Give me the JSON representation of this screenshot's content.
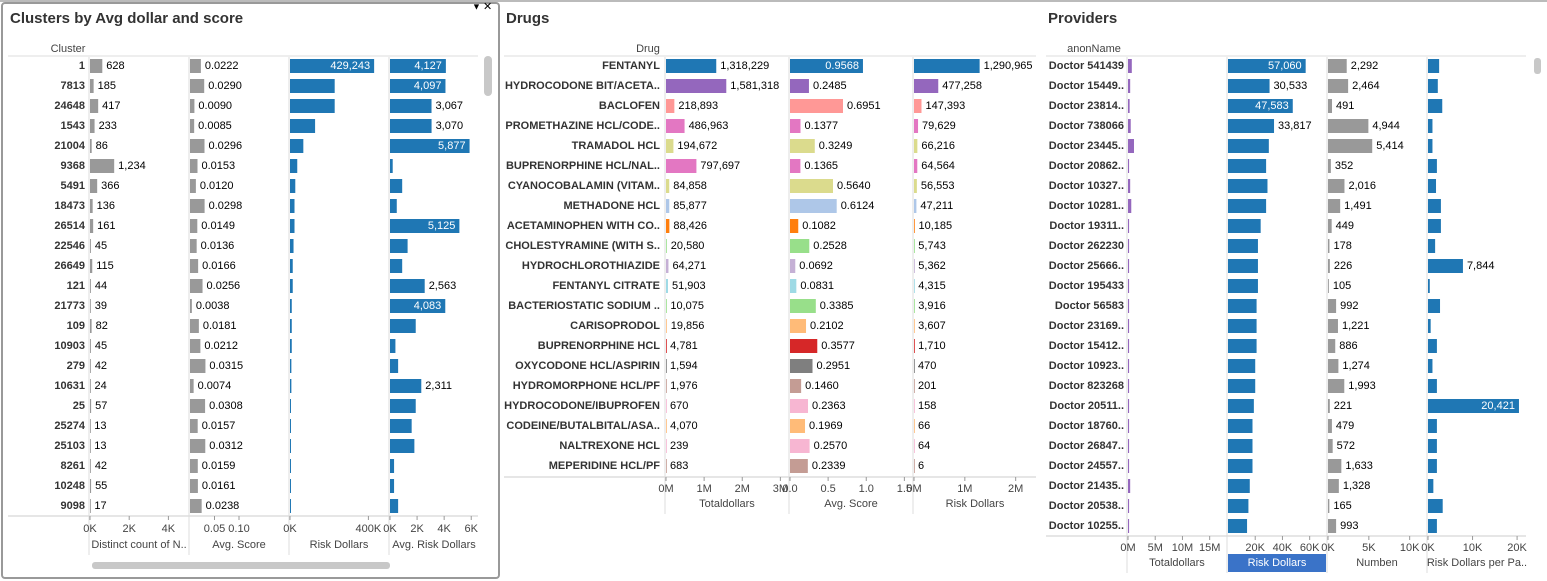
{
  "chart_data": [
    {
      "type": "bar",
      "title": "Clusters by Avg dollar and score",
      "y_label": "Cluster",
      "categories": [
        "1",
        "7813",
        "24648",
        "1543",
        "21004",
        "9368",
        "5491",
        "18473",
        "26514",
        "22546",
        "26649",
        "121",
        "21773",
        "109",
        "10903",
        "279",
        "10631",
        "25",
        "25274",
        "25103",
        "8261",
        "10248",
        "9098"
      ],
      "series": [
        {
          "name": "Distinct count of N..",
          "color": "#999999",
          "xlim": [
            0,
            5000
          ],
          "xticks": [
            {
              "value": 0,
              "label": "0K"
            },
            {
              "value": 2000,
              "label": "2K"
            },
            {
              "value": 4000,
              "label": "4K"
            }
          ],
          "values": [
            628,
            185,
            417,
            233,
            86,
            1234,
            366,
            136,
            161,
            45,
            115,
            44,
            39,
            82,
            45,
            42,
            24,
            57,
            13,
            13,
            42,
            55,
            17
          ],
          "value_labels": [
            "628",
            "185",
            "417",
            "233",
            "86",
            "1,234",
            "366",
            "136",
            "161",
            "45",
            "115",
            "44",
            "39",
            "82",
            "45",
            "42",
            "24",
            "57",
            "13",
            "13",
            "42",
            "55",
            "17"
          ]
        },
        {
          "name": "Avg. Score",
          "color": "#999999",
          "xlim": [
            0,
            0.2
          ],
          "xticks": [
            0.05,
            {
              "value": 0.1,
              "label": "0.10"
            }
          ],
          "values": [
            0.0222,
            0.029,
            0.009,
            0.0085,
            0.0296,
            0.0153,
            0.012,
            0.0298,
            0.0149,
            0.0136,
            0.0166,
            0.0256,
            0.0038,
            0.0181,
            0.0212,
            0.0315,
            0.0074,
            0.0308,
            0.0157,
            0.0312,
            0.0159,
            0.0161,
            0.0238
          ],
          "value_labels": [
            "0.0222",
            "0.0290",
            "0.0090",
            "0.0085",
            "0.0296",
            "0.0153",
            "0.0120",
            "0.0298",
            "0.0149",
            "0.0136",
            "0.0166",
            "0.0256",
            "0.0038",
            "0.0181",
            "0.0212",
            "0.0315",
            "0.0074",
            "0.0308",
            "0.0157",
            "0.0312",
            "0.0159",
            "0.0161",
            "0.0238"
          ]
        },
        {
          "name": "Risk Dollars",
          "color": "#1f77b4",
          "xlim": [
            0,
            500000
          ],
          "xticks": [
            {
              "value": 0,
              "label": "0K"
            },
            {
              "value": 400000,
              "label": "400K"
            }
          ],
          "values": [
            429243,
            228000,
            228000,
            128000,
            68000,
            37000,
            27000,
            23000,
            23000,
            18000,
            14000,
            14000,
            9000,
            9000,
            9000,
            7000,
            7000,
            5000,
            5000,
            5000,
            5000,
            5000,
            5000
          ],
          "value_labels": [
            "429,243",
            null,
            null,
            null,
            null,
            null,
            null,
            null,
            null,
            null,
            null,
            null,
            null,
            null,
            null,
            null,
            null,
            null,
            null,
            null,
            null,
            null,
            null
          ]
        },
        {
          "name": "Avg. Risk Dollars",
          "color": "#1f77b4",
          "xlim": [
            0,
            6500
          ],
          "xticks": [
            {
              "value": 0,
              "label": "0K"
            },
            {
              "value": 2000,
              "label": "2K"
            },
            {
              "value": 4000,
              "label": "4K"
            },
            {
              "value": 6000,
              "label": "6K"
            }
          ],
          "values": [
            4127,
            4097,
            3067,
            3070,
            5877,
            200,
            900,
            500,
            5125,
            1300,
            900,
            2563,
            4083,
            1900,
            400,
            600,
            2311,
            1900,
            1600,
            1800,
            300,
            300,
            600
          ],
          "value_labels": [
            "4,127",
            "4,097",
            "3,067",
            "3,070",
            "5,877",
            null,
            null,
            null,
            "5,125",
            null,
            null,
            "2,563",
            "4,083",
            null,
            null,
            null,
            "2,311",
            null,
            null,
            null,
            null,
            null,
            null
          ]
        }
      ]
    },
    {
      "type": "bar",
      "title": "Drugs",
      "y_label": "Drug",
      "categories": [
        "FENTANYL",
        "HYDROCODONE BIT/ACETA..",
        "BACLOFEN",
        "PROMETHAZINE HCL/CODE..",
        "TRAMADOL HCL",
        "BUPRENORPHINE HCL/NAL..",
        "CYANOCOBALAMIN (VITAM..",
        "METHADONE HCL",
        "ACETAMINOPHEN WITH CO..",
        "CHOLESTYRAMINE (WITH S..",
        "HYDROCHLOROTHIAZIDE",
        "FENTANYL CITRATE",
        "BACTERIOSTATIC SODIUM ..",
        "CARISOPRODOL",
        "BUPRENORPHINE HCL",
        "OXYCODONE HCL/ASPIRIN",
        "HYDROMORPHONE HCL/PF",
        "HYDROCODONE/IBUPROFEN",
        "CODEINE/BUTALBITAL/ASA..",
        "NALTREXONE HCL",
        "MEPERIDINE HCL/PF"
      ],
      "colors": [
        "#1f77b4",
        "#9467bd",
        "#ff9896",
        "#e377c2",
        "#dbdb8d",
        "#e377c2",
        "#dbdb8d",
        "#aec7e8",
        "#ff7f0e",
        "#98df8a",
        "#c5b0d5",
        "#9edae5",
        "#98df8a",
        "#ffbb78",
        "#d62728",
        "#7f7f7f",
        "#c49c94",
        "#f7b6d2",
        "#ffbb78",
        "#f7b6d2",
        "#c49c94"
      ],
      "series": [
        {
          "name": "Totaldollars",
          "xlim": [
            0,
            3200000
          ],
          "xticks": [
            {
              "value": 0,
              "label": "0M"
            },
            {
              "value": 1000000,
              "label": "1M"
            },
            {
              "value": 2000000,
              "label": "2M"
            },
            {
              "value": 3000000,
              "label": "3M"
            }
          ],
          "values": [
            1318229,
            1581318,
            218893,
            486963,
            194672,
            797697,
            84858,
            85877,
            88426,
            20580,
            64271,
            51903,
            10075,
            19856,
            4781,
            1594,
            1976,
            670,
            4070,
            239,
            683
          ],
          "value_labels": [
            "1,318,229",
            "1,581,318",
            "218,893",
            "486,963",
            "194,672",
            "797,697",
            "84,858",
            "85,877",
            "88,426",
            "20,580",
            "64,271",
            "51,903",
            "10,075",
            "19,856",
            "4,781",
            "1,594",
            "1,976",
            "670",
            "4,070",
            "239",
            "683"
          ]
        },
        {
          "name": "Avg. Score",
          "xlim": [
            0,
            1.6
          ],
          "xticks": [
            {
              "value": 0,
              "label": "0.0"
            },
            0.5,
            {
              "value": 1,
              "label": "1.0"
            },
            1.5
          ],
          "values": [
            0.9568,
            0.2485,
            0.6951,
            0.1377,
            0.3249,
            0.1365,
            0.564,
            0.6124,
            0.1082,
            0.2528,
            0.0692,
            0.0831,
            0.3385,
            0.2102,
            0.3577,
            0.2951,
            0.146,
            0.2363,
            0.1969,
            0.257,
            0.2339
          ],
          "value_labels": [
            "0.9568",
            "0.2485",
            "0.6951",
            "0.1377",
            "0.3249",
            "0.1365",
            "0.5640",
            "0.6124",
            "0.1082",
            "0.2528",
            "0.0692",
            "0.0831",
            "0.3385",
            "0.2102",
            "0.3577",
            "0.2951",
            "0.1460",
            "0.2363",
            "0.1969",
            "0.2570",
            "0.2339"
          ]
        },
        {
          "name": "Risk Dollars",
          "xlim": [
            0,
            2400000
          ],
          "xticks": [
            {
              "value": 0,
              "label": "0M"
            },
            {
              "value": 1000000,
              "label": "1M"
            },
            {
              "value": 2000000,
              "label": "2M"
            }
          ],
          "values": [
            1290965,
            477258,
            147393,
            79629,
            66216,
            64564,
            56553,
            47211,
            10185,
            5743,
            5362,
            4315,
            3916,
            3607,
            1710,
            470,
            201,
            158,
            66,
            64,
            6
          ],
          "value_labels": [
            "1,290,965",
            "477,258",
            "147,393",
            "79,629",
            "66,216",
            "64,564",
            "56,553",
            "47,211",
            "10,185",
            "5,743",
            "5,362",
            "4,315",
            "3,916",
            "3,607",
            "1,710",
            "470",
            "201",
            "158",
            "66",
            "64",
            "6"
          ]
        }
      ]
    },
    {
      "type": "bar",
      "title": "Providers",
      "y_label": "anonName",
      "categories": [
        "Doctor 541439",
        "Doctor 15449..",
        "Doctor 23814..",
        "Doctor 738066",
        "Doctor 23445..",
        "Doctor 20862..",
        "Doctor 10327..",
        "Doctor 10281..",
        "Doctor 19311..",
        "Doctor 262230",
        "Doctor 25666..",
        "Doctor 195433",
        "Doctor 56583",
        "Doctor 23169..",
        "Doctor 15412..",
        "Doctor 10923..",
        "Doctor 823268",
        "Doctor 20511..",
        "Doctor 18760..",
        "Doctor 26847..",
        "Doctor 24557..",
        "Doctor 21435..",
        "Doctor 20538..",
        "Doctor 10255.."
      ],
      "series": [
        {
          "name": "Totaldollars",
          "color": "#9467bd",
          "xlim": [
            0,
            18000000
          ],
          "xticks": [
            {
              "value": 0,
              "label": "0M"
            },
            {
              "value": 5000000,
              "label": "5M"
            },
            {
              "value": 10000000,
              "label": "10M"
            },
            {
              "value": 15000000,
              "label": "15M"
            }
          ],
          "values": [
            700000,
            400000,
            300000,
            500000,
            1100000,
            200000,
            400000,
            600000,
            200000,
            200000,
            200000,
            200000,
            200000,
            200000,
            200000,
            200000,
            200000,
            200000,
            200000,
            200000,
            200000,
            400000,
            200000,
            200000
          ],
          "value_labels": [
            null,
            null,
            null,
            null,
            null,
            null,
            null,
            null,
            null,
            null,
            null,
            null,
            null,
            null,
            null,
            null,
            null,
            null,
            null,
            null,
            null,
            null,
            null,
            null
          ]
        },
        {
          "name": "Risk Dollars",
          "color": "#1f77b4",
          "xlim": [
            0,
            72000
          ],
          "xticks": [
            {
              "value": 20000,
              "label": "20K"
            },
            {
              "value": 40000,
              "label": "40K"
            },
            {
              "value": 60000,
              "label": "60K"
            }
          ],
          "values": [
            57060,
            30533,
            47583,
            33817,
            30000,
            28000,
            29000,
            28000,
            24000,
            22000,
            22000,
            22000,
            21000,
            21000,
            21000,
            20000,
            20000,
            19000,
            18000,
            18000,
            18000,
            16000,
            15000,
            14000
          ],
          "value_labels": [
            "57,060",
            "30,533",
            "47,583",
            "33,817",
            null,
            null,
            null,
            null,
            null,
            null,
            null,
            null,
            null,
            null,
            null,
            null,
            null,
            null,
            null,
            null,
            null,
            null,
            null,
            null
          ]
        },
        {
          "name": "Numben",
          "color": "#999999",
          "xlim": [
            0,
            12000
          ],
          "xticks": [
            {
              "value": 0,
              "label": "0K"
            },
            {
              "value": 5000,
              "label": "5K"
            },
            {
              "value": 10000,
              "label": "10K"
            }
          ],
          "values": [
            2292,
            2464,
            491,
            4944,
            5414,
            352,
            2016,
            1491,
            449,
            178,
            226,
            105,
            992,
            1221,
            886,
            1274,
            1993,
            221,
            479,
            572,
            1633,
            1328,
            165,
            993
          ],
          "value_labels": [
            "2,292",
            "2,464",
            "491",
            "4,944",
            "5,414",
            "352",
            "2,016",
            "1,491",
            "449",
            "178",
            "226",
            "105",
            "992",
            "1,221",
            "886",
            "1,274",
            "1,993",
            "221",
            "479",
            "572",
            "1,633",
            "1,328",
            "165",
            "993"
          ]
        },
        {
          "name": "Risk Dollars per Pa..",
          "color": "#1f77b4",
          "xlim": [
            0,
            22000
          ],
          "xticks": [
            {
              "value": 0,
              "label": "0K"
            },
            {
              "value": 10000,
              "label": "10K"
            },
            {
              "value": 20000,
              "label": "20K"
            }
          ],
          "values": [
            2500,
            2200,
            3200,
            1000,
            1000,
            2000,
            1800,
            2900,
            2900,
            1600,
            7844,
            400,
            2700,
            600,
            2000,
            1000,
            2000,
            20421,
            2000,
            2000,
            2000,
            1200,
            3300,
            2000
          ],
          "value_labels": [
            null,
            null,
            null,
            null,
            null,
            null,
            null,
            null,
            null,
            null,
            "7,844",
            null,
            null,
            null,
            null,
            null,
            null,
            "20,421",
            null,
            null,
            null,
            null,
            null,
            null
          ]
        }
      ]
    }
  ]
}
